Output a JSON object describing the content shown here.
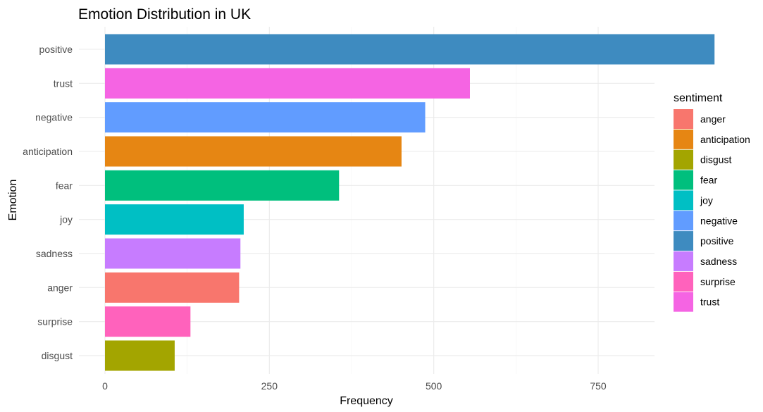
{
  "chart_data": {
    "type": "bar",
    "orientation": "horizontal",
    "title": "Emotion Distribution in UK",
    "xlabel": "Frequency",
    "ylabel": "Emotion",
    "xlim": [
      0,
      975
    ],
    "x_ticks": [
      0,
      250,
      500,
      750
    ],
    "categories": [
      "positive",
      "trust",
      "negative",
      "anticipation",
      "fear",
      "joy",
      "sadness",
      "anger",
      "surprise",
      "disgust"
    ],
    "values": [
      927,
      555,
      487,
      451,
      356,
      211,
      206,
      204,
      130,
      106
    ],
    "bar_fill_keys": [
      "positive",
      "trust",
      "negative",
      "anticipation",
      "fear",
      "joy",
      "sadness",
      "anger",
      "surprise",
      "disgust"
    ],
    "grid": true,
    "legend": {
      "title": "sentiment",
      "placement": "right",
      "entries": [
        {
          "label": "anger",
          "color": "#F8766D"
        },
        {
          "label": "anticipation",
          "color": "#E68613"
        },
        {
          "label": "disgust",
          "color": "#A3A500"
        },
        {
          "label": "fear",
          "color": "#00BF7D"
        },
        {
          "label": "joy",
          "color": "#00BFC4"
        },
        {
          "label": "negative",
          "color": "#619CFF"
        },
        {
          "label": "positive",
          "color": "#3E8BC0"
        },
        {
          "label": "sadness",
          "color": "#C77CFF"
        },
        {
          "label": "surprise",
          "color": "#FF62BC"
        },
        {
          "label": "trust",
          "color": "#F564E3"
        }
      ]
    }
  }
}
